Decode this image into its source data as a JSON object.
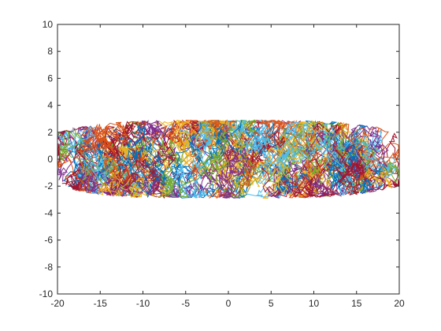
{
  "chart_data": {
    "type": "line",
    "title": "",
    "xlabel": "",
    "ylabel": "",
    "xlim": [
      -20,
      20
    ],
    "ylim": [
      -10,
      10
    ],
    "grid": false,
    "legend": "none",
    "xticks": [
      -20,
      -15,
      -10,
      -5,
      0,
      5,
      10,
      15,
      20
    ],
    "yticks": [
      -10,
      -8,
      -6,
      -4,
      -2,
      0,
      2,
      4,
      6,
      8,
      10
    ],
    "xtick_labels": [
      "-20",
      "-15",
      "-10",
      "-5",
      "0",
      "5",
      "10",
      "15",
      "20"
    ],
    "ytick_labels": [
      "-10",
      "-8",
      "-6",
      "-4",
      "-2",
      "0",
      "2",
      "4",
      "6",
      "8",
      "10"
    ],
    "series_description": "Many overlapping random-walk trajectories filling an elliptical band roughly x in [-20, 20], y in [-3, 3]",
    "envelope": {
      "x_range": [
        -20,
        20
      ],
      "y_half_height_center": 2.9,
      "y_half_height_ends": 2.0
    },
    "series_colors": [
      "#0072bd",
      "#d95319",
      "#edb120",
      "#7e2f8e",
      "#77ac30",
      "#4dbeee",
      "#a2142f"
    ]
  }
}
